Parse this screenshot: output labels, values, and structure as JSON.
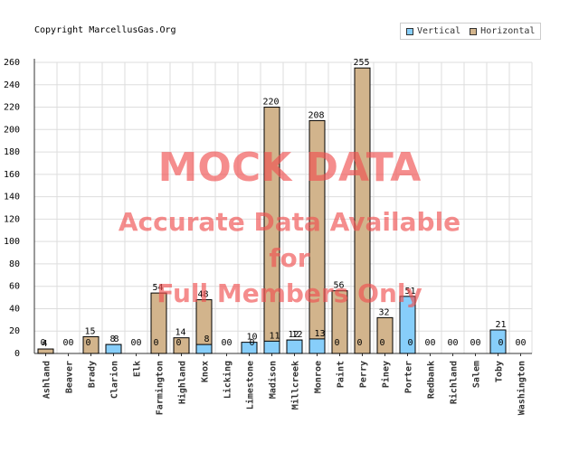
{
  "copyright": "Copyright MarcellusGas.Org",
  "legend": {
    "vertical": "Vertical",
    "horizontal": "Horizontal"
  },
  "colors": {
    "vertical": "#87CEFA",
    "horizontal": "#D2B48C",
    "watermark": "#F05050"
  },
  "watermark": {
    "line1": "MOCK DATA",
    "line2": "Accurate Data Available",
    "line3": "for",
    "line4": "Full Members Only"
  },
  "chart_data": {
    "type": "bar",
    "categories": [
      "Ashland",
      "Beaver",
      "Brady",
      "Clarion",
      "Elk",
      "Farmington",
      "Highland",
      "Knox",
      "Licking",
      "Limestone",
      "Madison",
      "Millcreek",
      "Monroe",
      "Paint",
      "Perry",
      "Piney",
      "Porter",
      "Redbank",
      "Richland",
      "Salem",
      "Toby",
      "Washington"
    ],
    "series": [
      {
        "name": "Vertical",
        "values": [
          0,
          0,
          0,
          8,
          0,
          0,
          0,
          8,
          0,
          10,
          11,
          12,
          13,
          0,
          0,
          0,
          51,
          0,
          0,
          0,
          21,
          0
        ]
      },
      {
        "name": "Horizontal",
        "values": [
          4,
          0,
          15,
          8,
          0,
          54,
          14,
          48,
          0,
          0,
          220,
          12,
          208,
          56,
          255,
          32,
          0,
          0,
          0,
          0,
          0,
          0
        ]
      }
    ],
    "ylim": [
      0,
      260
    ],
    "yticks": [
      0,
      20,
      40,
      60,
      80,
      100,
      120,
      140,
      160,
      180,
      200,
      220,
      240,
      260
    ],
    "grid": true,
    "legend_position": "top-right"
  }
}
